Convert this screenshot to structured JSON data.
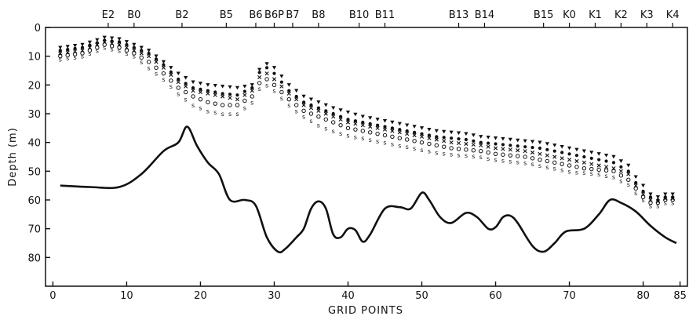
{
  "chart_data": {
    "type": "scatter",
    "xlabel": "GRID POINTS",
    "ylabel": "Depth (m)",
    "xlim": [
      -1,
      86
    ],
    "ylim": [
      90,
      0
    ],
    "x_ticks": [
      0,
      10,
      20,
      30,
      40,
      50,
      60,
      70,
      80,
      85
    ],
    "y_ticks": [
      0,
      10,
      20,
      30,
      40,
      50,
      60,
      70,
      80
    ],
    "stations": [
      {
        "label": "E2",
        "x": 7.5
      },
      {
        "label": "B0",
        "x": 11
      },
      {
        "label": "B2",
        "x": 17.5
      },
      {
        "label": "B5",
        "x": 23.5
      },
      {
        "label": "B6",
        "x": 27.5
      },
      {
        "label": "B6P",
        "x": 30
      },
      {
        "label": "B7",
        "x": 32.5
      },
      {
        "label": "B8",
        "x": 36
      },
      {
        "label": "B10",
        "x": 41.5
      },
      {
        "label": "B11",
        "x": 45
      },
      {
        "label": "B13",
        "x": 55
      },
      {
        "label": "B14",
        "x": 58.5
      },
      {
        "label": "B15",
        "x": 66.5
      },
      {
        "label": "K0",
        "x": 70
      },
      {
        "label": "K1",
        "x": 73.5
      },
      {
        "label": "K2",
        "x": 77
      },
      {
        "label": "K3",
        "x": 80.5
      },
      {
        "label": "K4",
        "x": 84
      }
    ],
    "bathymetry": {
      "x": [
        1,
        5,
        9,
        12,
        15,
        17,
        18.2,
        19.5,
        21,
        22.5,
        24,
        26,
        27.5,
        29,
        30.5,
        31.5,
        33,
        34,
        35,
        36,
        37,
        38,
        39,
        40,
        41,
        42,
        43,
        45,
        47,
        48.5,
        50,
        51,
        52.5,
        54,
        56,
        57.5,
        59,
        60,
        61,
        62,
        63,
        65,
        66.5,
        68,
        69.5,
        72,
        74,
        75.5,
        77,
        79,
        81,
        83,
        84.5
      ],
      "y": [
        55,
        55.5,
        55.5,
        51,
        43,
        40,
        34.5,
        41,
        47,
        51,
        60,
        60,
        62,
        73,
        78,
        77,
        73,
        70,
        63,
        60.5,
        63,
        72,
        73,
        70,
        70.5,
        74.5,
        72,
        63,
        62.5,
        63,
        57.5,
        60,
        66,
        68,
        64.5,
        66,
        70,
        69.5,
        66,
        65.5,
        68,
        76,
        78,
        75,
        71,
        70,
        65,
        60,
        61,
        64,
        69,
        73,
        75
      ]
    },
    "series": [
      {
        "name": "",
        "marker": "triangle",
        "x": [
          1,
          4,
          7,
          9,
          11,
          13,
          15,
          17,
          19,
          21,
          23,
          25,
          27,
          28.5,
          30,
          32,
          34,
          36,
          38,
          40,
          42,
          44,
          46,
          48,
          50,
          52,
          54,
          56,
          58,
          60,
          62,
          64,
          66,
          68,
          70,
          72,
          74,
          76,
          78,
          79,
          80,
          81,
          82,
          83,
          84
        ],
        "y": [
          7,
          6,
          3.5,
          4,
          6,
          8,
          12,
          16,
          19,
          20,
          20.5,
          21,
          20,
          12,
          14,
          20,
          24,
          26,
          28,
          29.5,
          31,
          32,
          33,
          34,
          35,
          36,
          36.5,
          37,
          38,
          38.5,
          39,
          39.5,
          40,
          41,
          42,
          43,
          44,
          45,
          48,
          52,
          55,
          58,
          59,
          58,
          58
        ]
      },
      {
        "name": "",
        "marker": "dot",
        "x": [
          1,
          4,
          7,
          9,
          11,
          13,
          15,
          17,
          19,
          21,
          23,
          25,
          27,
          28.5,
          30,
          32,
          34,
          36,
          38,
          40,
          42,
          44,
          46,
          48,
          50,
          52,
          54,
          56,
          58,
          60,
          62,
          64,
          66,
          68,
          70,
          72,
          74,
          76,
          78,
          79,
          80,
          81,
          82,
          83,
          84
        ],
        "y": [
          8,
          7,
          4.5,
          5,
          7,
          9,
          13,
          18,
          21,
          22,
          23,
          23.5,
          21,
          13,
          16,
          22,
          26,
          28,
          30,
          32,
          33,
          34,
          35,
          36,
          37,
          38,
          38.5,
          39,
          40,
          40.5,
          41,
          41.5,
          42,
          43,
          44,
          45,
          46,
          47,
          50,
          54,
          57,
          59,
          60,
          59,
          59
        ]
      },
      {
        "name": "",
        "marker": "x",
        "x": [
          1,
          4,
          7,
          9,
          11,
          13,
          15,
          17,
          19,
          21,
          23,
          25,
          27,
          28.5,
          30,
          32,
          34,
          36,
          38,
          40,
          42,
          44,
          46,
          48,
          50,
          52,
          54,
          56,
          58,
          60,
          62,
          64,
          66,
          68,
          70,
          72,
          74,
          76,
          78,
          79,
          80,
          81,
          82,
          83,
          84
        ],
        "y": [
          9,
          8,
          5,
          6,
          8,
          10,
          14,
          19,
          22,
          23,
          24,
          25,
          22,
          15,
          18,
          23,
          27,
          29,
          31,
          33,
          34,
          35,
          36,
          37,
          38,
          39,
          40,
          40.5,
          41,
          42,
          42.5,
          43,
          44,
          45,
          46,
          47,
          48,
          49,
          51,
          55,
          58,
          60,
          60.5,
          59.5,
          59.5
        ]
      },
      {
        "name": "",
        "marker": "o",
        "x": [
          1,
          4,
          7,
          9,
          11,
          13,
          15,
          17,
          19,
          21,
          23,
          25,
          27,
          28.5,
          30,
          32,
          34,
          36,
          38,
          40,
          42,
          44,
          46,
          48,
          50,
          52,
          54,
          56,
          58,
          60,
          62,
          64,
          66,
          68,
          70,
          72,
          74,
          76,
          78,
          79,
          80,
          81,
          82,
          83,
          84
        ],
        "y": [
          10,
          9,
          6,
          7,
          9,
          12,
          16,
          21,
          24,
          26,
          27,
          27,
          24,
          17,
          20,
          25,
          29,
          31,
          33,
          35,
          36,
          37,
          38,
          39,
          40,
          41,
          42,
          42.5,
          43,
          44,
          44.5,
          45,
          46,
          47,
          48,
          49,
          49.5,
          50,
          53,
          56,
          59,
          61,
          61,
          60,
          60
        ]
      },
      {
        "name": "",
        "marker": "s",
        "x": [
          1,
          4,
          7,
          9,
          11,
          13,
          15,
          17,
          19,
          21,
          23,
          25,
          27,
          28.5,
          30,
          32,
          34,
          36,
          38,
          40,
          42,
          44,
          46,
          48,
          50,
          52,
          54,
          56,
          58,
          60,
          62,
          64,
          66,
          68,
          70,
          72,
          74,
          76,
          78,
          79,
          80,
          81,
          82,
          83,
          84
        ],
        "y": [
          11,
          10,
          7,
          8,
          10,
          14,
          18,
          23,
          27,
          29,
          30,
          30,
          26,
          19,
          22,
          27,
          31,
          34,
          36,
          37.5,
          38.5,
          39.5,
          40.5,
          41.5,
          42.5,
          43.5,
          44,
          44.5,
          45,
          46,
          46.5,
          47,
          48,
          49,
          50,
          50.5,
          51,
          52,
          54.5,
          57.5,
          60,
          62,
          62,
          61,
          61
        ]
      }
    ]
  }
}
